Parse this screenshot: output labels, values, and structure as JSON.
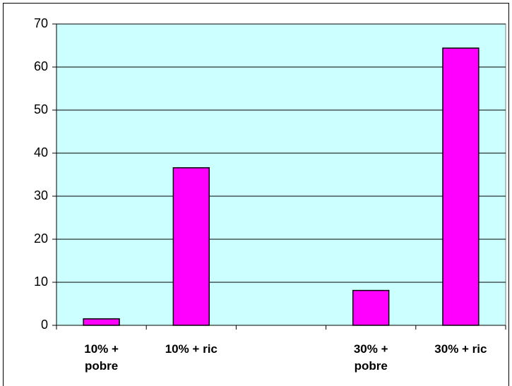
{
  "chart_data": {
    "type": "bar",
    "categories": [
      "10% + pobre",
      "10% + ric",
      null,
      "30% + pobre",
      "30% + ric"
    ],
    "values": [
      1.5,
      36.6,
      null,
      8.1,
      64.4
    ],
    "color": "#ff00ff",
    "ylim": [
      0,
      70
    ],
    "yticks": [
      0,
      10,
      20,
      30,
      40,
      50,
      60,
      70
    ],
    "grid": true
  }
}
